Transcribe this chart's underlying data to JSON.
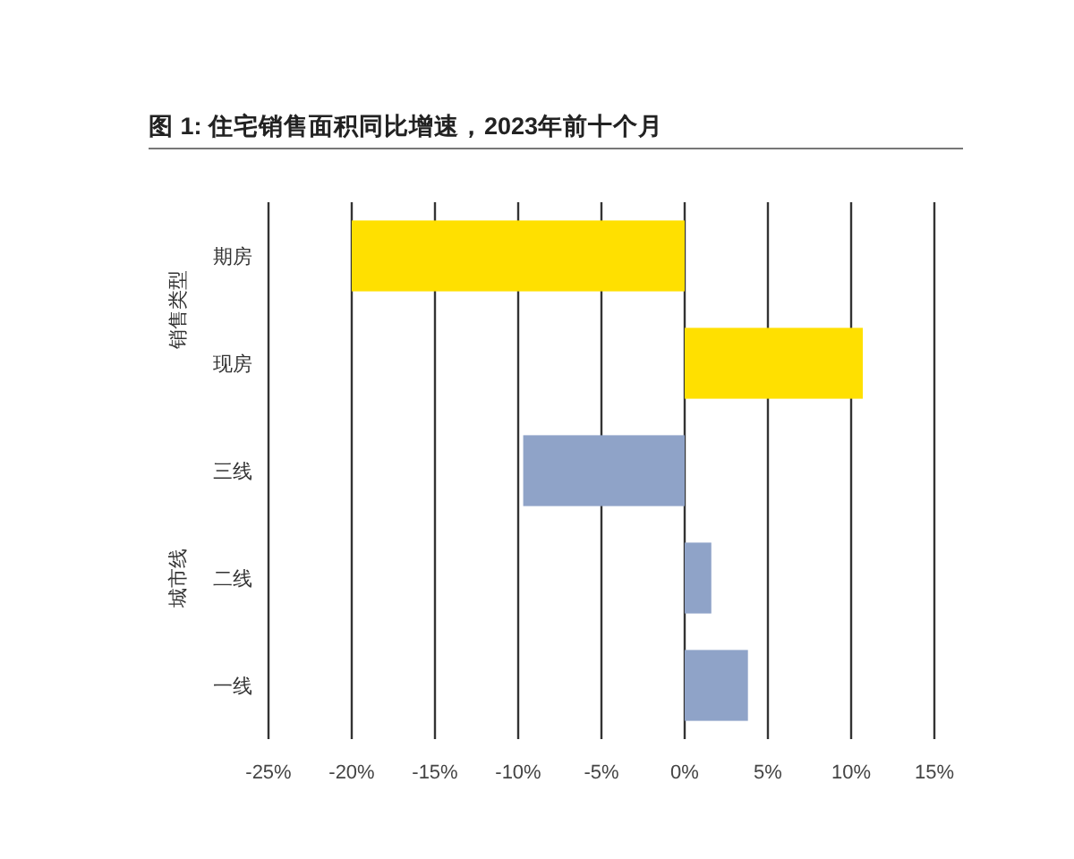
{
  "chart_data": {
    "type": "bar",
    "orientation": "horizontal",
    "title": "图 1: 住宅销售面积同比增速，2023年前十个月",
    "categories": [
      "期房",
      "现房",
      "三线",
      "二线",
      "一线"
    ],
    "values": [
      -20,
      10.7,
      -9.7,
      1.6,
      3.8
    ],
    "colors": [
      "#ffe000",
      "#ffe000",
      "#8fa3c8",
      "#8fa3c8",
      "#8fa3c8"
    ],
    "xlim": [
      -25,
      15
    ],
    "xticks": [
      {
        "value": -25,
        "label": "-25%"
      },
      {
        "value": -20,
        "label": "-20%"
      },
      {
        "value": -15,
        "label": "-15%"
      },
      {
        "value": -10,
        "label": "-10%"
      },
      {
        "value": -5,
        "label": "-5%"
      },
      {
        "value": 0,
        "label": "0%"
      },
      {
        "value": 5,
        "label": "5%"
      },
      {
        "value": 10,
        "label": "10%"
      },
      {
        "value": 15,
        "label": "15%"
      }
    ],
    "grid": "x",
    "annotations": [
      "销售类型",
      "城市线"
    ]
  }
}
